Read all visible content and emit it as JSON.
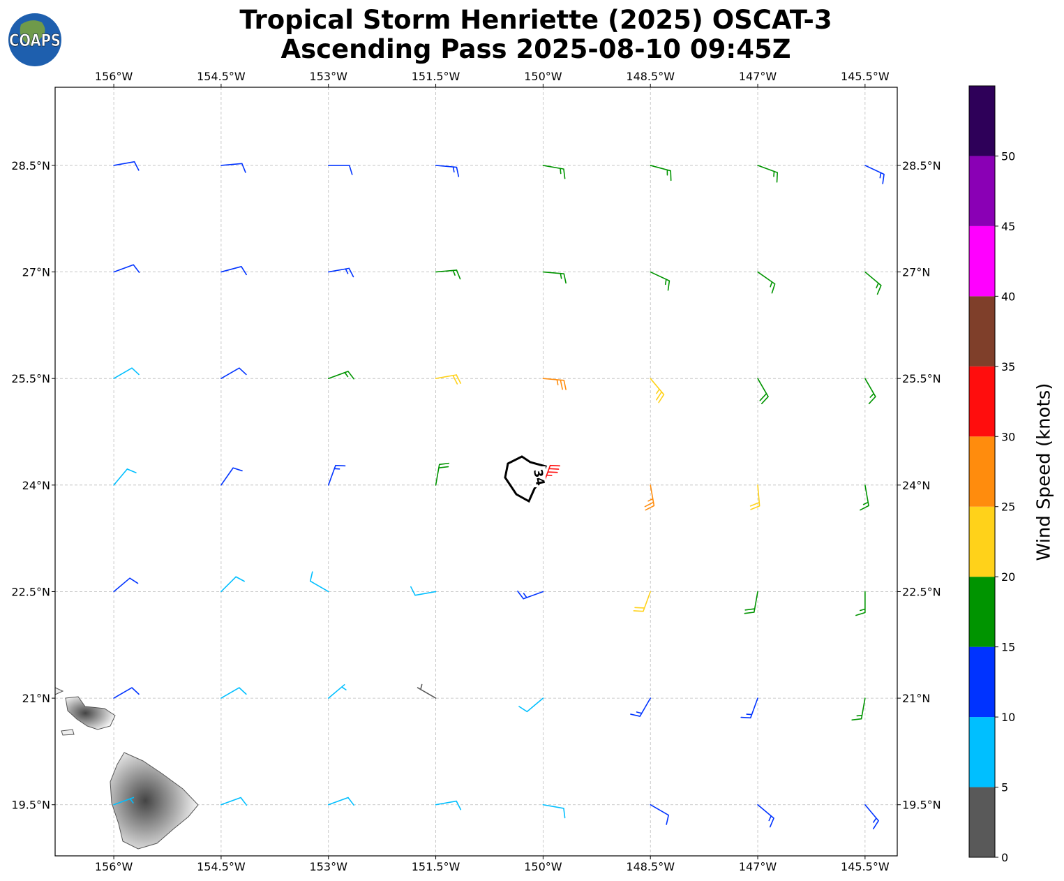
{
  "chart_data": {
    "type": "barbs",
    "title": "Tropical Storm Henriette (2025) OSCAT-3",
    "subtitle": "Ascending Pass 2025-08-10 09:45Z",
    "logo_text": "COAPS",
    "contour_label": "34",
    "xlim": [
      -156.82,
      -145.05
    ],
    "ylim": [
      18.78,
      29.6
    ],
    "xticks": [
      {
        "value": -156,
        "label": "156°W"
      },
      {
        "value": -154.5,
        "label": "154.5°W"
      },
      {
        "value": -153,
        "label": "153°W"
      },
      {
        "value": -151.5,
        "label": "151.5°W"
      },
      {
        "value": -150,
        "label": "150°W"
      },
      {
        "value": -148.5,
        "label": "148.5°W"
      },
      {
        "value": -147,
        "label": "147°W"
      },
      {
        "value": -145.5,
        "label": "145.5°W"
      }
    ],
    "yticks": [
      {
        "value": 19.5,
        "label": "19.5°N"
      },
      {
        "value": 21,
        "label": "21°N"
      },
      {
        "value": 22.5,
        "label": "22.5°N"
      },
      {
        "value": 24,
        "label": "24°N"
      },
      {
        "value": 25.5,
        "label": "25.5°N"
      },
      {
        "value": 27,
        "label": "27°N"
      },
      {
        "value": 28.5,
        "label": "28.5°N"
      }
    ],
    "grid": true,
    "points": {
      "lon": [
        -156,
        -154.5,
        -153,
        -151.5,
        -150,
        -148.5,
        -147,
        -145.5,
        -156,
        -154.5,
        -153,
        -151.5,
        -150,
        -148.5,
        -147,
        -145.5,
        -156,
        -154.5,
        -153,
        -151.5,
        -150,
        -148.5,
        -147,
        -145.5,
        -156,
        -154.5,
        -153,
        -151.5,
        -150,
        -148.5,
        -147,
        -145.5,
        -156,
        -154.5,
        -153,
        -151.5,
        -150,
        -148.5,
        -147,
        -145.5,
        -156,
        -154.5,
        -153,
        -151.5,
        -150,
        -148.5,
        -147,
        -145.5,
        -156,
        -154.5,
        -153,
        -151.5,
        -150,
        -148.5,
        -147,
        -145.5
      ],
      "lat": [
        28.5,
        28.5,
        28.5,
        28.5,
        28.5,
        28.5,
        28.5,
        28.5,
        27,
        27,
        27,
        27,
        27,
        27,
        27,
        27,
        25.5,
        25.5,
        25.5,
        25.5,
        25.5,
        25.5,
        25.5,
        25.5,
        24,
        24,
        24,
        24,
        24,
        24,
        24,
        24,
        22.5,
        22.5,
        22.5,
        22.5,
        22.5,
        22.5,
        22.5,
        22.5,
        21,
        21,
        21,
        21,
        21,
        21,
        21,
        21,
        19.5,
        19.5,
        19.5,
        19.5,
        19.5,
        19.5,
        19.5,
        19.5
      ],
      "speed": [
        12,
        12,
        12,
        14,
        16,
        16,
        16,
        14,
        11,
        12,
        13,
        16,
        17,
        17,
        17,
        16,
        9,
        11,
        16,
        22,
        27,
        23,
        18,
        16,
        8,
        11,
        13,
        18,
        33,
        27,
        22,
        16,
        11,
        9,
        8,
        8,
        13,
        22,
        18,
        16,
        11,
        8,
        7,
        4,
        9,
        13,
        14,
        16,
        7,
        8,
        9,
        9,
        9,
        12,
        13,
        13
      ],
      "direction": [
        80,
        85,
        90,
        95,
        100,
        105,
        110,
        115,
        70,
        75,
        80,
        85,
        95,
        115,
        125,
        130,
        60,
        60,
        70,
        80,
        95,
        140,
        150,
        150,
        40,
        35,
        20,
        10,
        20,
        170,
        175,
        170,
        50,
        45,
        300,
        260,
        250,
        200,
        190,
        180,
        60,
        60,
        50,
        300,
        230,
        210,
        200,
        190,
        70,
        70,
        70,
        80,
        100,
        120,
        130,
        140
      ]
    },
    "colorbar": {
      "label": "Wind Speed (knots)",
      "bounds": [
        0,
        5,
        10,
        15,
        20,
        25,
        30,
        35,
        40,
        45,
        50,
        55
      ],
      "colors": [
        "#595959",
        "#00bfff",
        "#0033ff",
        "#009400",
        "#ffd21a",
        "#ff8c0d",
        "#ff0d0d",
        "#7f3f2a",
        "#ff00ff",
        "#8a00b5",
        "#2e0059"
      ],
      "ticks": [
        0,
        5,
        10,
        15,
        20,
        25,
        30,
        35,
        40,
        45,
        50
      ]
    }
  }
}
